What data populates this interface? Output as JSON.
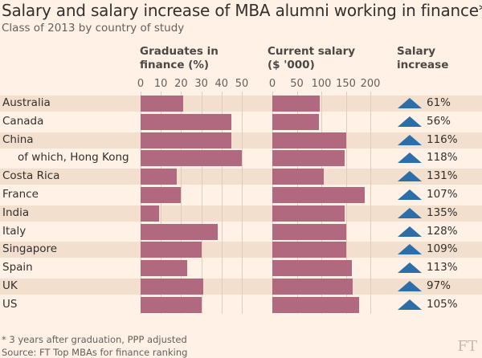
{
  "title": "Salary and salary increase of MBA alumni working in finance*",
  "subtitle": "Class of 2013 by country of study",
  "footnote": "* 3 years after graduation, PPP adjusted",
  "source": "Source: FT Top MBAs for finance ranking",
  "logo": "FT",
  "colors": {
    "bar": "#b0697f",
    "triangle": "#2d6ea8",
    "background": "#fff1e5",
    "band": "#f2dfce"
  },
  "chart_data": {
    "type": "bar",
    "categories": [
      "Australia",
      "Canada",
      "China",
      "of which, Hong Kong",
      "Costa Rica",
      "France",
      "India",
      "Italy",
      "Singapore",
      "Spain",
      "UK",
      "US"
    ],
    "panels": [
      {
        "header_line1": "Graduates in",
        "header_line2": "finance (%)",
        "ticks": [
          "0",
          "10",
          "20",
          "30",
          "40",
          "50"
        ],
        "xlim": [
          0,
          50
        ],
        "values": [
          21,
          45,
          45,
          50,
          18,
          20,
          9,
          38,
          30,
          23,
          31,
          30
        ]
      },
      {
        "header_line1": "Current salary",
        "header_line2": "($ '000)",
        "ticks": [
          "0",
          "50",
          "100",
          "150",
          "200"
        ],
        "xlim": [
          0,
          200
        ],
        "values": [
          96,
          95,
          150,
          147,
          105,
          188,
          147,
          150,
          150,
          162,
          164,
          177
        ]
      }
    ],
    "increase_header_line1": "Salary",
    "increase_header_line2": "increase",
    "increase_labels": [
      "61%",
      "56%",
      "116%",
      "118%",
      "131%",
      "107%",
      "135%",
      "128%",
      "109%",
      "113%",
      "97%",
      "105%"
    ],
    "increase_values": [
      61,
      56,
      116,
      118,
      131,
      107,
      135,
      128,
      109,
      113,
      97,
      105
    ],
    "grid": true
  }
}
